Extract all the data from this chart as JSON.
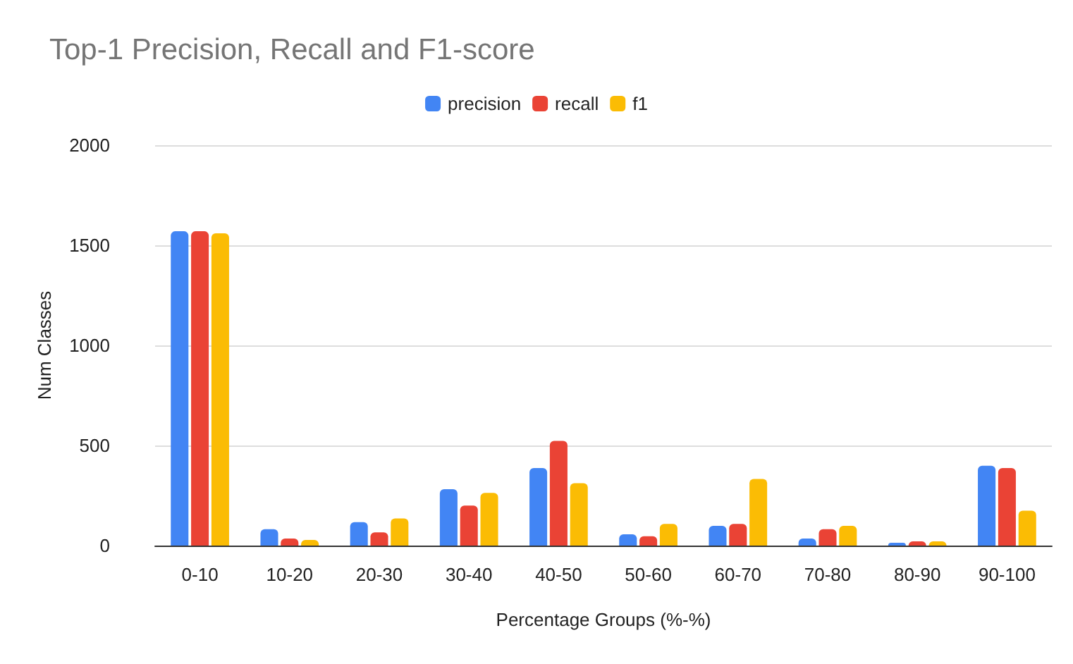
{
  "chart_data": {
    "type": "bar",
    "title": "Top-1 Precision, Recall and F1-score",
    "xlabel": "Percentage Groups (%-%)",
    "ylabel": "Num Classes",
    "categories": [
      "0-10",
      "10-20",
      "20-30",
      "30-40",
      "40-50",
      "50-60",
      "60-70",
      "70-80",
      "80-90",
      "90-100"
    ],
    "series": [
      {
        "name": "precision",
        "color": "#4285f4",
        "values": [
          1570,
          82,
          117,
          282,
          387,
          56,
          99,
          35,
          14,
          399
        ]
      },
      {
        "name": "recall",
        "color": "#ea4335",
        "values": [
          1570,
          35,
          66,
          200,
          523,
          47,
          108,
          82,
          21,
          387
        ]
      },
      {
        "name": "f1",
        "color": "#fbbc04",
        "values": [
          1560,
          28,
          136,
          263,
          312,
          108,
          333,
          99,
          21,
          174
        ]
      }
    ],
    "ylim": [
      0,
      2000
    ],
    "yticks": [
      0,
      500,
      1000,
      1500,
      2000
    ],
    "grid": "y",
    "legend": "top"
  }
}
